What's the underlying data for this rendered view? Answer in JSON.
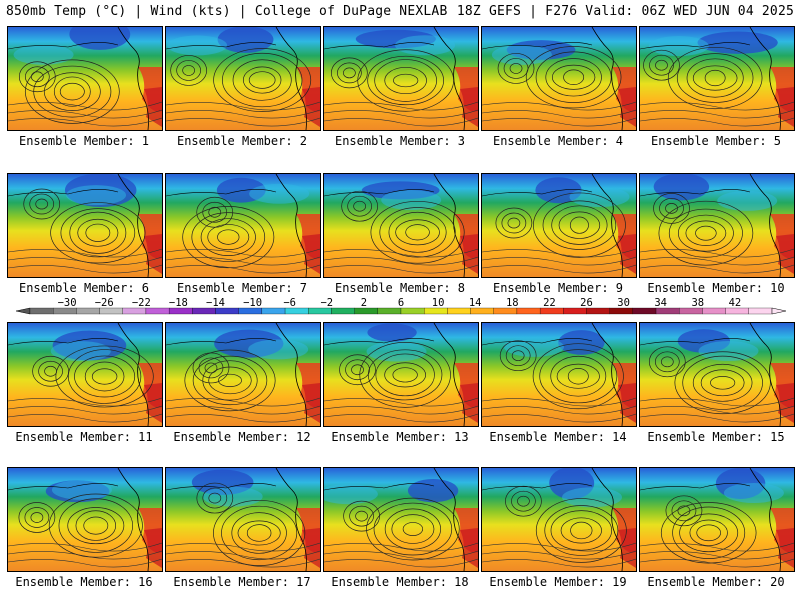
{
  "header": {
    "left": "850mb Temp (°C) | Wind (kts) | College of DuPage NEXLAB",
    "right": "18Z GEFS | F276 Valid: 06Z WED JUN 04 2025"
  },
  "members": [
    {
      "label": "Ensemble Member: 1"
    },
    {
      "label": "Ensemble Member: 2"
    },
    {
      "label": "Ensemble Member: 3"
    },
    {
      "label": "Ensemble Member: 4"
    },
    {
      "label": "Ensemble Member: 5"
    },
    {
      "label": "Ensemble Member: 6"
    },
    {
      "label": "Ensemble Member: 7"
    },
    {
      "label": "Ensemble Member: 8"
    },
    {
      "label": "Ensemble Member: 9"
    },
    {
      "label": "Ensemble Member: 10"
    },
    {
      "label": "Ensemble Member: 11"
    },
    {
      "label": "Ensemble Member: 12"
    },
    {
      "label": "Ensemble Member: 13"
    },
    {
      "label": "Ensemble Member: 14"
    },
    {
      "label": "Ensemble Member: 15"
    },
    {
      "label": "Ensemble Member: 16"
    },
    {
      "label": "Ensemble Member: 17"
    },
    {
      "label": "Ensemble Member: 18"
    },
    {
      "label": "Ensemble Member: 19"
    },
    {
      "label": "Ensemble Member: 20"
    }
  ],
  "colorbar": {
    "tick_labels": [
      "−30",
      "−26",
      "−22",
      "−18",
      "−14",
      "−10",
      "−6",
      "−2",
      "2",
      "6",
      "10",
      "14",
      "18",
      "22",
      "26",
      "30",
      "34",
      "38",
      "42"
    ],
    "colors": [
      "#6e6e6e",
      "#8a8a8a",
      "#a6a6a6",
      "#c2c2c2",
      "#d8a0e0",
      "#c060d8",
      "#9a30c8",
      "#6a28b8",
      "#3c3cc8",
      "#2a6ee0",
      "#3aa4ec",
      "#36d0e0",
      "#28c8a0",
      "#20b060",
      "#2a9a2a",
      "#5ab02a",
      "#9ad028",
      "#e6e61e",
      "#ffd21e",
      "#ffb01e",
      "#ff8c1e",
      "#ff641e",
      "#f03c1e",
      "#d81e1e",
      "#b41414",
      "#8c0a0a",
      "#6e0a28",
      "#a03c78",
      "#c864a0",
      "#e690c8",
      "#f6b4de",
      "#fcd4ee"
    ],
    "range": [
      -34,
      46
    ]
  }
}
